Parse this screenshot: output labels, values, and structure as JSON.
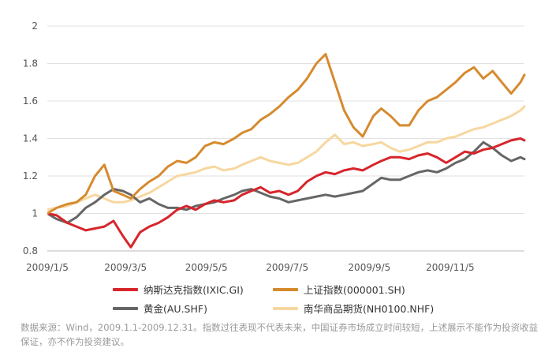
{
  "chart_data": {
    "type": "line",
    "x_ticks": [
      "2009/1/5",
      "2009/3/5",
      "2009/5/5",
      "2009/7/5",
      "2009/9/5",
      "2009/11/5"
    ],
    "y_ticks": [
      "0.8",
      "1",
      "1.2",
      "1.4",
      "1.6",
      "1.8",
      "2"
    ],
    "ylim": [
      0.8,
      2.0
    ],
    "xlim": [
      "2009-01-05",
      "2009-12-31"
    ],
    "grid": "horizontal",
    "legend_position": "bottom",
    "series": [
      {
        "name": "纳斯达克指数(IXIC.GI)",
        "color": "#d7252b",
        "points": [
          [
            "2009-01-05",
            1.0
          ],
          [
            "2009-01-12",
            0.99
          ],
          [
            "2009-01-20",
            0.95
          ],
          [
            "2009-01-27",
            0.93
          ],
          [
            "2009-02-03",
            0.91
          ],
          [
            "2009-02-10",
            0.92
          ],
          [
            "2009-02-17",
            0.93
          ],
          [
            "2009-02-24",
            0.96
          ],
          [
            "2009-03-03",
            0.88
          ],
          [
            "2009-03-09",
            0.82
          ],
          [
            "2009-03-16",
            0.9
          ],
          [
            "2009-03-23",
            0.93
          ],
          [
            "2009-03-30",
            0.95
          ],
          [
            "2009-04-06",
            0.98
          ],
          [
            "2009-04-13",
            1.02
          ],
          [
            "2009-04-20",
            1.04
          ],
          [
            "2009-04-27",
            1.02
          ],
          [
            "2009-05-04",
            1.05
          ],
          [
            "2009-05-11",
            1.07
          ],
          [
            "2009-05-18",
            1.06
          ],
          [
            "2009-05-26",
            1.07
          ],
          [
            "2009-06-01",
            1.1
          ],
          [
            "2009-06-08",
            1.12
          ],
          [
            "2009-06-15",
            1.14
          ],
          [
            "2009-06-22",
            1.11
          ],
          [
            "2009-06-29",
            1.12
          ],
          [
            "2009-07-06",
            1.1
          ],
          [
            "2009-07-13",
            1.12
          ],
          [
            "2009-07-20",
            1.17
          ],
          [
            "2009-07-27",
            1.2
          ],
          [
            "2009-08-03",
            1.22
          ],
          [
            "2009-08-10",
            1.21
          ],
          [
            "2009-08-17",
            1.23
          ],
          [
            "2009-08-24",
            1.24
          ],
          [
            "2009-08-31",
            1.23
          ],
          [
            "2009-09-08",
            1.26
          ],
          [
            "2009-09-14",
            1.28
          ],
          [
            "2009-09-21",
            1.3
          ],
          [
            "2009-09-28",
            1.3
          ],
          [
            "2009-10-05",
            1.29
          ],
          [
            "2009-10-12",
            1.31
          ],
          [
            "2009-10-19",
            1.32
          ],
          [
            "2009-10-26",
            1.3
          ],
          [
            "2009-11-02",
            1.27
          ],
          [
            "2009-11-09",
            1.3
          ],
          [
            "2009-11-16",
            1.33
          ],
          [
            "2009-11-23",
            1.32
          ],
          [
            "2009-11-30",
            1.34
          ],
          [
            "2009-12-07",
            1.35
          ],
          [
            "2009-12-14",
            1.37
          ],
          [
            "2009-12-21",
            1.39
          ],
          [
            "2009-12-28",
            1.4
          ],
          [
            "2009-12-31",
            1.39
          ]
        ]
      },
      {
        "name": "上证指数(000001.SH)",
        "color": "#d68a2e",
        "points": [
          [
            "2009-01-05",
            1.0
          ],
          [
            "2009-01-12",
            1.03
          ],
          [
            "2009-01-20",
            1.05
          ],
          [
            "2009-01-27",
            1.06
          ],
          [
            "2009-02-03",
            1.1
          ],
          [
            "2009-02-10",
            1.2
          ],
          [
            "2009-02-17",
            1.26
          ],
          [
            "2009-02-24",
            1.12
          ],
          [
            "2009-03-03",
            1.1
          ],
          [
            "2009-03-09",
            1.08
          ],
          [
            "2009-03-16",
            1.13
          ],
          [
            "2009-03-23",
            1.17
          ],
          [
            "2009-03-30",
            1.2
          ],
          [
            "2009-04-06",
            1.25
          ],
          [
            "2009-04-13",
            1.28
          ],
          [
            "2009-04-20",
            1.27
          ],
          [
            "2009-04-27",
            1.3
          ],
          [
            "2009-05-04",
            1.36
          ],
          [
            "2009-05-11",
            1.38
          ],
          [
            "2009-05-18",
            1.37
          ],
          [
            "2009-05-26",
            1.4
          ],
          [
            "2009-06-01",
            1.43
          ],
          [
            "2009-06-08",
            1.45
          ],
          [
            "2009-06-15",
            1.5
          ],
          [
            "2009-06-22",
            1.53
          ],
          [
            "2009-06-29",
            1.57
          ],
          [
            "2009-07-06",
            1.62
          ],
          [
            "2009-07-13",
            1.66
          ],
          [
            "2009-07-20",
            1.72
          ],
          [
            "2009-07-27",
            1.8
          ],
          [
            "2009-08-03",
            1.85
          ],
          [
            "2009-08-10",
            1.7
          ],
          [
            "2009-08-17",
            1.55
          ],
          [
            "2009-08-24",
            1.46
          ],
          [
            "2009-08-31",
            1.41
          ],
          [
            "2009-09-08",
            1.52
          ],
          [
            "2009-09-14",
            1.56
          ],
          [
            "2009-09-21",
            1.52
          ],
          [
            "2009-09-28",
            1.47
          ],
          [
            "2009-10-05",
            1.47
          ],
          [
            "2009-10-12",
            1.55
          ],
          [
            "2009-10-19",
            1.6
          ],
          [
            "2009-10-26",
            1.62
          ],
          [
            "2009-11-02",
            1.66
          ],
          [
            "2009-11-09",
            1.7
          ],
          [
            "2009-11-16",
            1.75
          ],
          [
            "2009-11-23",
            1.78
          ],
          [
            "2009-11-30",
            1.72
          ],
          [
            "2009-12-07",
            1.76
          ],
          [
            "2009-12-14",
            1.7
          ],
          [
            "2009-12-21",
            1.64
          ],
          [
            "2009-12-28",
            1.7
          ],
          [
            "2009-12-31",
            1.74
          ]
        ]
      },
      {
        "name": "黄金(AU.SHF)",
        "color": "#666666",
        "points": [
          [
            "2009-01-05",
            1.0
          ],
          [
            "2009-01-12",
            0.97
          ],
          [
            "2009-01-20",
            0.95
          ],
          [
            "2009-01-27",
            0.98
          ],
          [
            "2009-02-03",
            1.03
          ],
          [
            "2009-02-10",
            1.06
          ],
          [
            "2009-02-17",
            1.1
          ],
          [
            "2009-02-24",
            1.13
          ],
          [
            "2009-03-03",
            1.12
          ],
          [
            "2009-03-09",
            1.1
          ],
          [
            "2009-03-16",
            1.06
          ],
          [
            "2009-03-23",
            1.08
          ],
          [
            "2009-03-30",
            1.05
          ],
          [
            "2009-04-06",
            1.03
          ],
          [
            "2009-04-13",
            1.03
          ],
          [
            "2009-04-20",
            1.02
          ],
          [
            "2009-04-27",
            1.04
          ],
          [
            "2009-05-04",
            1.05
          ],
          [
            "2009-05-11",
            1.06
          ],
          [
            "2009-05-18",
            1.08
          ],
          [
            "2009-05-26",
            1.1
          ],
          [
            "2009-06-01",
            1.12
          ],
          [
            "2009-06-08",
            1.13
          ],
          [
            "2009-06-15",
            1.11
          ],
          [
            "2009-06-22",
            1.09
          ],
          [
            "2009-06-29",
            1.08
          ],
          [
            "2009-07-06",
            1.06
          ],
          [
            "2009-07-13",
            1.07
          ],
          [
            "2009-07-20",
            1.08
          ],
          [
            "2009-07-27",
            1.09
          ],
          [
            "2009-08-03",
            1.1
          ],
          [
            "2009-08-10",
            1.09
          ],
          [
            "2009-08-17",
            1.1
          ],
          [
            "2009-08-24",
            1.11
          ],
          [
            "2009-08-31",
            1.12
          ],
          [
            "2009-09-08",
            1.16
          ],
          [
            "2009-09-14",
            1.19
          ],
          [
            "2009-09-21",
            1.18
          ],
          [
            "2009-09-28",
            1.18
          ],
          [
            "2009-10-05",
            1.2
          ],
          [
            "2009-10-12",
            1.22
          ],
          [
            "2009-10-19",
            1.23
          ],
          [
            "2009-10-26",
            1.22
          ],
          [
            "2009-11-02",
            1.24
          ],
          [
            "2009-11-09",
            1.27
          ],
          [
            "2009-11-16",
            1.29
          ],
          [
            "2009-11-23",
            1.33
          ],
          [
            "2009-11-30",
            1.38
          ],
          [
            "2009-12-07",
            1.35
          ],
          [
            "2009-12-14",
            1.31
          ],
          [
            "2009-12-21",
            1.28
          ],
          [
            "2009-12-28",
            1.3
          ],
          [
            "2009-12-31",
            1.29
          ]
        ]
      },
      {
        "name": "南华商品期货(NH0100.NHF)",
        "color": "#f7d7a0",
        "points": [
          [
            "2009-01-05",
            1.02
          ],
          [
            "2009-01-12",
            1.03
          ],
          [
            "2009-01-20",
            1.04
          ],
          [
            "2009-01-27",
            1.06
          ],
          [
            "2009-02-03",
            1.08
          ],
          [
            "2009-02-10",
            1.1
          ],
          [
            "2009-02-17",
            1.08
          ],
          [
            "2009-02-24",
            1.06
          ],
          [
            "2009-03-03",
            1.06
          ],
          [
            "2009-03-09",
            1.07
          ],
          [
            "2009-03-16",
            1.09
          ],
          [
            "2009-03-23",
            1.11
          ],
          [
            "2009-03-30",
            1.14
          ],
          [
            "2009-04-06",
            1.17
          ],
          [
            "2009-04-13",
            1.2
          ],
          [
            "2009-04-20",
            1.21
          ],
          [
            "2009-04-27",
            1.22
          ],
          [
            "2009-05-04",
            1.24
          ],
          [
            "2009-05-11",
            1.25
          ],
          [
            "2009-05-18",
            1.23
          ],
          [
            "2009-05-26",
            1.24
          ],
          [
            "2009-06-01",
            1.26
          ],
          [
            "2009-06-08",
            1.28
          ],
          [
            "2009-06-15",
            1.3
          ],
          [
            "2009-06-22",
            1.28
          ],
          [
            "2009-06-29",
            1.27
          ],
          [
            "2009-07-06",
            1.26
          ],
          [
            "2009-07-13",
            1.27
          ],
          [
            "2009-07-20",
            1.3
          ],
          [
            "2009-07-27",
            1.33
          ],
          [
            "2009-08-03",
            1.38
          ],
          [
            "2009-08-10",
            1.42
          ],
          [
            "2009-08-17",
            1.37
          ],
          [
            "2009-08-24",
            1.38
          ],
          [
            "2009-08-31",
            1.36
          ],
          [
            "2009-09-08",
            1.37
          ],
          [
            "2009-09-14",
            1.38
          ],
          [
            "2009-09-21",
            1.35
          ],
          [
            "2009-09-28",
            1.33
          ],
          [
            "2009-10-05",
            1.34
          ],
          [
            "2009-10-12",
            1.36
          ],
          [
            "2009-10-19",
            1.38
          ],
          [
            "2009-10-26",
            1.38
          ],
          [
            "2009-11-02",
            1.4
          ],
          [
            "2009-11-09",
            1.41
          ],
          [
            "2009-11-16",
            1.43
          ],
          [
            "2009-11-23",
            1.45
          ],
          [
            "2009-11-30",
            1.46
          ],
          [
            "2009-12-07",
            1.48
          ],
          [
            "2009-12-14",
            1.5
          ],
          [
            "2009-12-21",
            1.52
          ],
          [
            "2009-12-28",
            1.55
          ],
          [
            "2009-12-31",
            1.57
          ]
        ]
      }
    ]
  },
  "legend": [
    {
      "label": "纳斯达克指数(IXIC.GI)",
      "color": "#d7252b"
    },
    {
      "label": "上证指数(000001.SH)",
      "color": "#d68a2e"
    },
    {
      "label": "黄金(AU.SHF)",
      "color": "#666666"
    },
    {
      "label": "南华商品期货(NH0100.NHF)",
      "color": "#f7d7a0"
    }
  ],
  "note": "数据来源：Wind，2009.1.1-2009.12.31。指数过往表现不代表未来，中国证券市场成立时间较短，上述展示不能作为投资收益保证，亦不作为投资建议。"
}
